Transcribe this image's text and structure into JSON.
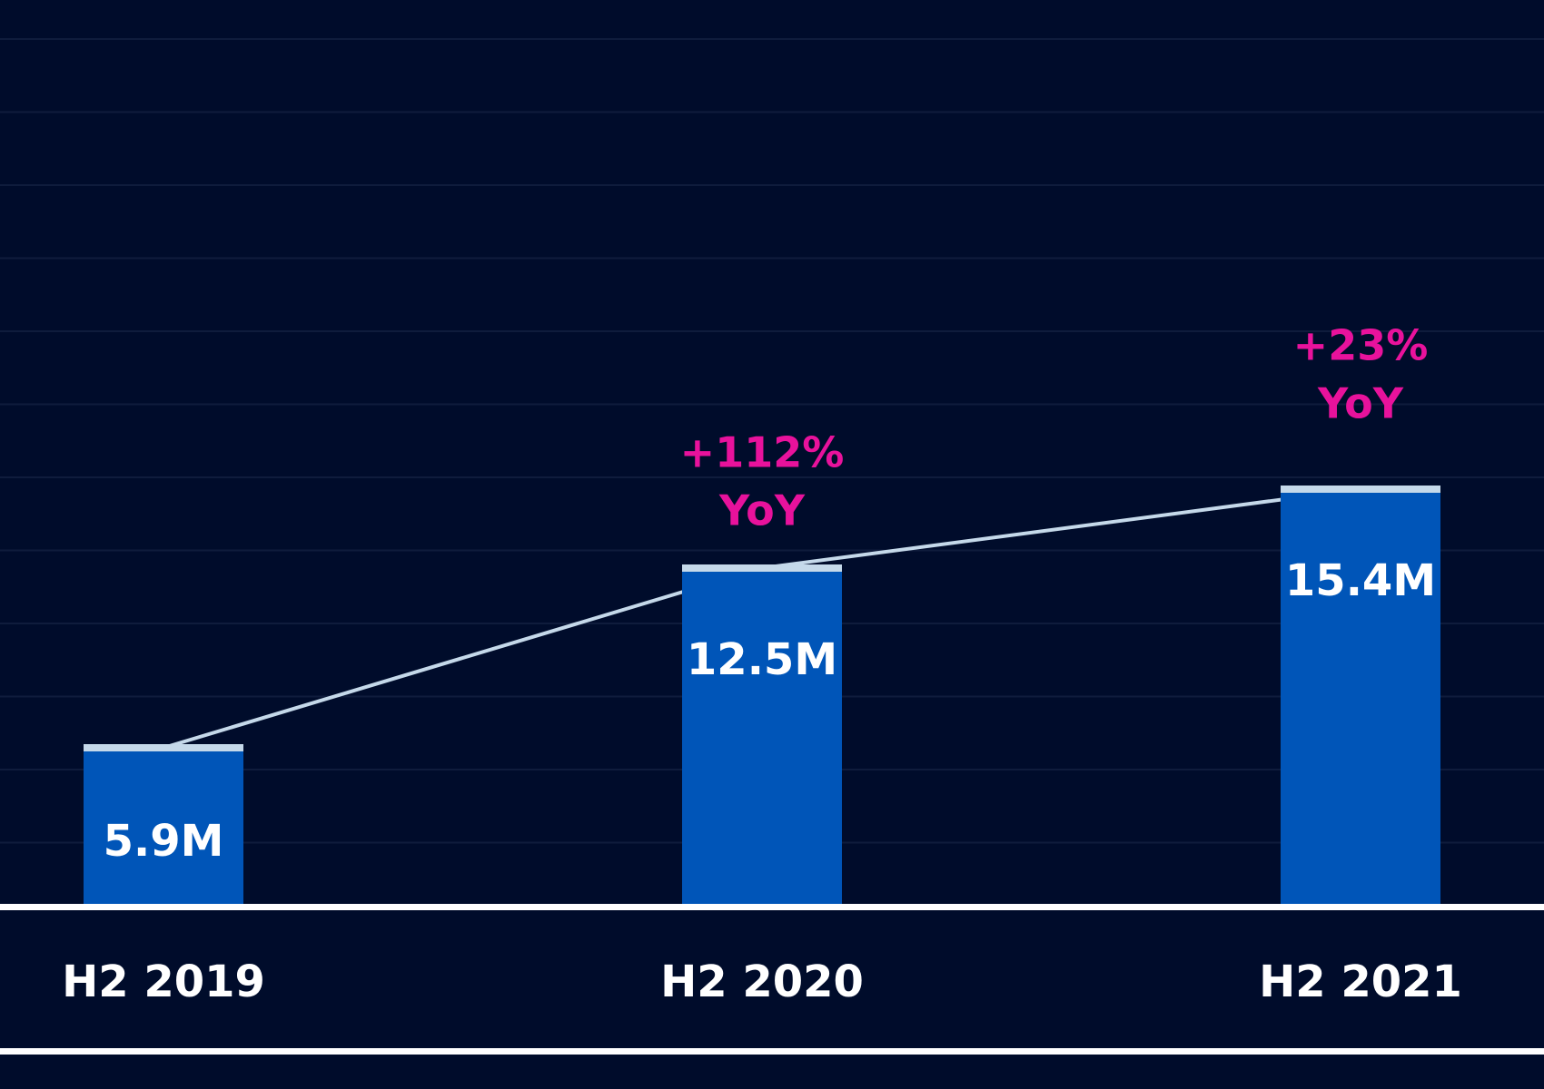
{
  "chart_data": {
    "type": "bar",
    "categories": [
      "H2 2019",
      "H2 2020",
      "H2 2021"
    ],
    "values": [
      5.9,
      12.5,
      15.4
    ],
    "data_labels": [
      "5.9M",
      "12.5M",
      "15.4M"
    ],
    "annotations": [
      {
        "category": "H2 2020",
        "lines": [
          "+112%",
          "YoY"
        ]
      },
      {
        "category": "H2 2021",
        "lines": [
          "+23%",
          "YoY"
        ]
      }
    ],
    "trend_line": true,
    "title": "",
    "xlabel": "",
    "ylabel": "",
    "ylim": [
      0,
      33
    ],
    "grid": true,
    "legend": "none",
    "colors": {
      "background": "#000c2b",
      "bar": "#0055b8",
      "bar_cap": "#c5d9ea",
      "trend_line": "#c5d9ea",
      "annotation": "#e8129c",
      "text": "#ffffff",
      "grid": "#0f1c3c"
    }
  }
}
